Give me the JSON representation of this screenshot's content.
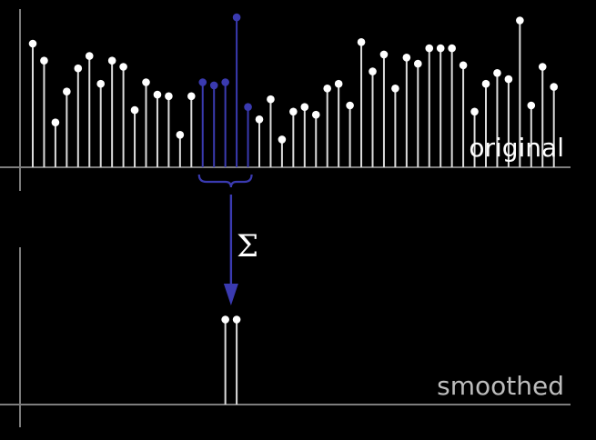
{
  "labels": {
    "top": "original",
    "bottom": "smoothed",
    "operator": "Σ"
  },
  "colors": {
    "background": "#000000",
    "axis": "#7d7d7d",
    "stem": "#dcdcdc",
    "highlight": "#3a3ab0",
    "text": "#ffffff",
    "smoothed_text": "#bdbdbd"
  },
  "chart_data": [
    {
      "type": "stem",
      "name": "original",
      "x": [
        0,
        1,
        2,
        3,
        4,
        5,
        6,
        7,
        8,
        9,
        10,
        11,
        12,
        13,
        14,
        15,
        16,
        17,
        18,
        19,
        20,
        21,
        22,
        23,
        24,
        25,
        26,
        27,
        28,
        29,
        30,
        31,
        32,
        33,
        34,
        35,
        36,
        37,
        38,
        39,
        40,
        41,
        42,
        43,
        44,
        45,
        46
      ],
      "values": [
        0.8,
        0.69,
        0.29,
        0.49,
        0.64,
        0.72,
        0.54,
        0.69,
        0.65,
        0.37,
        0.55,
        0.47,
        0.46,
        0.21,
        0.46,
        0.55,
        0.53,
        0.55,
        0.97,
        0.39,
        0.31,
        0.44,
        0.18,
        0.36,
        0.39,
        0.34,
        0.51,
        0.54,
        0.4,
        0.81,
        0.62,
        0.73,
        0.51,
        0.71,
        0.67,
        0.77,
        0.77,
        0.77,
        0.66,
        0.36,
        0.54,
        0.61,
        0.57,
        0.95,
        0.4,
        0.65,
        0.52
      ],
      "window": [
        15,
        16,
        17,
        18,
        19
      ],
      "ylim": [
        0,
        1
      ]
    },
    {
      "type": "stem",
      "name": "smoothed",
      "x": [
        17,
        18
      ],
      "values": [
        0.55,
        0.55
      ],
      "ylim": [
        0,
        1
      ]
    }
  ]
}
